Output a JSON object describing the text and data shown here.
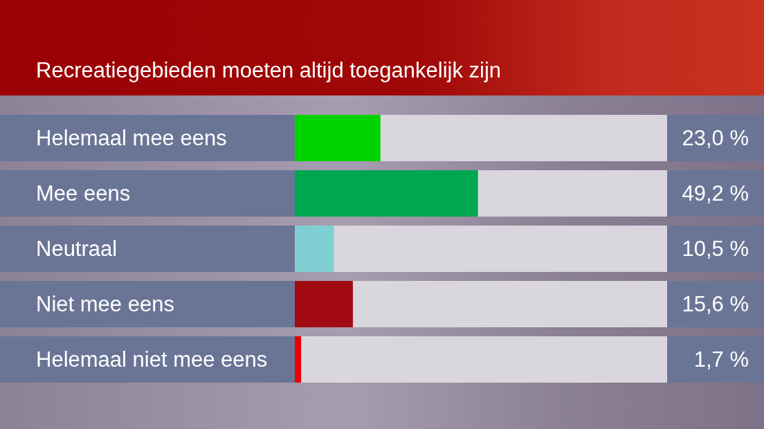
{
  "chart_data": {
    "type": "bar",
    "orientation": "horizontal",
    "title": "Recreatiegebieden moeten altijd toegankelijk zijn",
    "categories": [
      "Helemaal mee eens",
      "Mee eens",
      "Neutraal",
      "Niet mee eens",
      "Helemaal niet mee eens"
    ],
    "values": [
      23.0,
      49.2,
      10.5,
      15.6,
      1.7
    ],
    "colors": [
      "#00d400",
      "#00a650",
      "#80cfd2",
      "#a00a10",
      "#e8000a"
    ],
    "value_labels": [
      "23,0 %",
      "49,2 %",
      "10,5 %",
      "15,6 %",
      "1,7 %"
    ],
    "xlim": [
      0,
      100
    ],
    "tick_labels": "y"
  }
}
